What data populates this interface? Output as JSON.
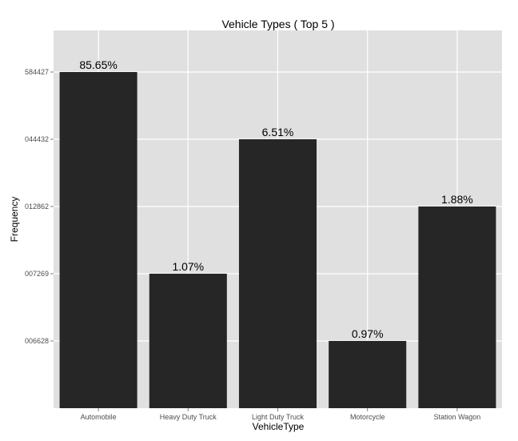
{
  "chart_data": {
    "type": "bar",
    "title": "Vehicle Types ( Top 5 )",
    "xlabel": "VehicleType",
    "ylabel": "Frequency",
    "categories": [
      "Automobile",
      "Heavy Duty Truck",
      "Light Duty Truck",
      "Motorcycle",
      "Station Wagon"
    ],
    "values": [
      5,
      2,
      4,
      1,
      3
    ],
    "value_labels": [
      "85.65%",
      "1.07%",
      "6.51%",
      "0.97%",
      "1.88%"
    ],
    "y_ticks": [
      {
        "label": "006628",
        "value": 1
      },
      {
        "label": "007269",
        "value": 2
      },
      {
        "label": "012862",
        "value": 3
      },
      {
        "label": "044432",
        "value": 4
      },
      {
        "label": "584427",
        "value": 5
      }
    ],
    "ylim": [
      0,
      5.5
    ],
    "grid": true,
    "legend": "none",
    "colors": {
      "bar": "#262626",
      "panel": "#e0e0e0",
      "gridline": "#ffffff",
      "tick_text": "#4d4d4d"
    }
  }
}
